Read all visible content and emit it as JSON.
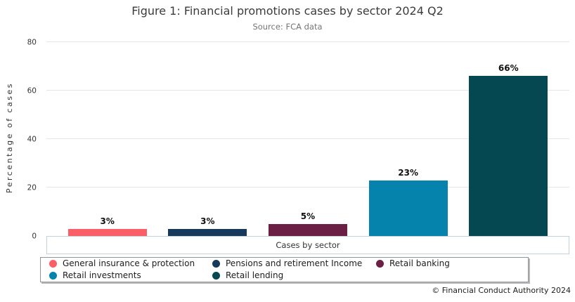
{
  "footer": "© Financial Conduct Authority 2024",
  "chart_data": {
    "type": "bar",
    "title": "Figure 1: Financial promotions cases by sector 2024 Q2",
    "subtitle": "Source: FCA data",
    "xlabel": "Cases by sector",
    "ylabel": "Percentage of cases",
    "ylim": [
      0,
      80
    ],
    "yticks": [
      0,
      20,
      40,
      60,
      80
    ],
    "grid": true,
    "legend_position": "bottom",
    "categories": [
      "General insurance & protection",
      "Pensions and retirement Income",
      "Retail banking",
      "Retail investments",
      "Retail lending"
    ],
    "values": [
      3,
      3,
      5,
      23,
      66
    ],
    "value_labels": [
      "3%",
      "3%",
      "5%",
      "23%",
      "66%"
    ],
    "colors": [
      "#FA5F67",
      "#16395C",
      "#6C1F45",
      "#0583AC",
      "#054852"
    ]
  }
}
